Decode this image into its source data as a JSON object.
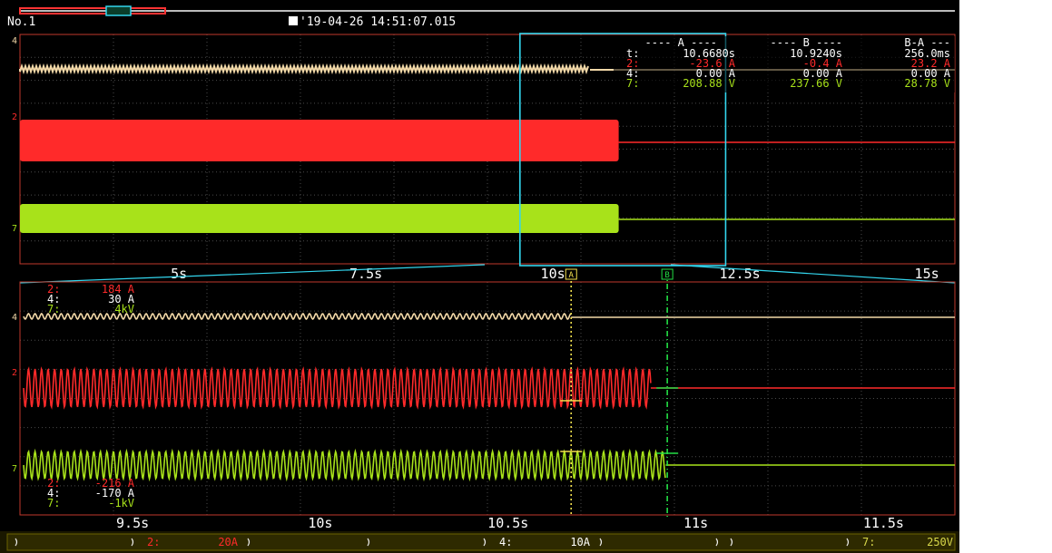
{
  "header": {
    "record_number": "No.1",
    "trigger_timestamp": "'19-04-26 14:51:07.015",
    "trigger_icon": "trigger-icon"
  },
  "cursor_table": {
    "header_a": "---- A ----",
    "header_b": "---- B ----",
    "header_ba": "B-A ---",
    "rows": [
      {
        "label": "t:",
        "a": "10.6680s",
        "b": "10.9240s",
        "ba": "256.0ms",
        "color": "#ffffff"
      },
      {
        "label": "2:",
        "a": "-23.6 A",
        "b": "-0.4 A",
        "ba": "23.2 A",
        "color": "#ff2a2a"
      },
      {
        "label": "4:",
        "a": "0.00 A",
        "b": "0.00 A",
        "ba": "0.00 A",
        "color": "#ffffff"
      },
      {
        "label": "7:",
        "a": "208.88 V",
        "b": "237.66 V",
        "ba": "28.78 V",
        "color": "#a8e21a"
      }
    ]
  },
  "top_axis": {
    "ticks": [
      {
        "value": 5,
        "label": "5s"
      },
      {
        "value": 7.5,
        "label": "7.5s"
      },
      {
        "value": 10,
        "label": "10s"
      },
      {
        "value": 12.5,
        "label": "12.5s"
      },
      {
        "value": 15,
        "label": "15s"
      }
    ],
    "range": [
      2.875,
      15.375
    ],
    "zoom_window": [
      9.56,
      12.31
    ]
  },
  "bottom_axis": {
    "ticks": [
      {
        "value": 9.5,
        "label": "9.5s"
      },
      {
        "value": 10,
        "label": "10s"
      },
      {
        "value": 10.5,
        "label": "10.5s"
      },
      {
        "value": 11,
        "label": "11s"
      },
      {
        "value": 11.5,
        "label": "11.5s"
      }
    ],
    "range": [
      9.2,
      11.69
    ]
  },
  "scale_top": [
    {
      "label": "2:",
      "value": "184 A",
      "color": "#ff2a2a"
    },
    {
      "label": "4:",
      "value": "30 A",
      "color": "#ffffff"
    },
    {
      "label": "7:",
      "value": "4kV",
      "color": "#a8e21a"
    }
  ],
  "scale_bottom": [
    {
      "label": "2:",
      "value": "-216 A",
      "color": "#ff2a2a"
    },
    {
      "label": "4:",
      "value": "-170 A",
      "color": "#ffffff"
    },
    {
      "label": "7:",
      "value": "-1kV",
      "color": "#a8e21a"
    }
  ],
  "channel_markers": [
    {
      "name": "4",
      "color": "#f3d9a8"
    },
    {
      "name": "2",
      "color": "#ff2a2a"
    },
    {
      "name": "7",
      "color": "#a8e21a"
    }
  ],
  "cursor_markers": {
    "a": "A",
    "b": "B"
  },
  "status_bar": [
    {
      "channel": "2:",
      "scale": "20A",
      "color": "#ff2a2a"
    },
    {
      "channel": "4:",
      "scale": "10A",
      "color": "#ffffff"
    },
    {
      "channel": "7:",
      "scale": "250V",
      "color": "#d8d84a"
    }
  ],
  "colors": {
    "ch4": "#f3d9a8",
    "ch2": "#ff2a2a",
    "ch7": "#a8e21a",
    "grid_border": "#c0392b",
    "zoom_box": "#33d6ee",
    "cursor_a": "#f4e04d",
    "cursor_b": "#22dd44",
    "status_bar": "#2e2a00"
  },
  "chart_data": {
    "type": "line",
    "title": "",
    "xlabel": "",
    "ylabel": "",
    "series": [
      {
        "name": "2",
        "description_values": {
          "on_until_s": 10.88,
          "amplitude": "large sinusoid then zero"
        }
      },
      {
        "name": "4",
        "description_values": {
          "on_until_s": 10.668,
          "amplitude": "small ripple then flat"
        }
      },
      {
        "name": "7",
        "description_values": {
          "on_until_s": 10.92,
          "amplitude": "large sinusoid then flat"
        }
      }
    ]
  }
}
